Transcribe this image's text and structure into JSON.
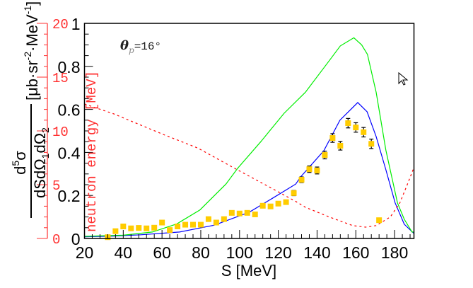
{
  "chart_data": {
    "type": "scatter",
    "xlabel": "S [MeV]",
    "ylabel": {
      "numerator": "d",
      "numerator_sup": "5",
      "numerator_sym": "σ",
      "denominator": "dSdΩ",
      "sub1": "1",
      "mid": "dΩ",
      "sub2": "2",
      "units": "[μb·sr",
      "units_sup1": "-2",
      "units_mid": "·MeV",
      "units_sup2": "-1",
      "units_end": "]"
    },
    "ylabel_right": "neutron energy [MeV]",
    "annotation": {
      "symbol": "θ",
      "sub": "p",
      "text": "=16°"
    },
    "xlim": [
      20,
      190
    ],
    "ylim": [
      0,
      1
    ],
    "ylim_right": [
      0,
      20
    ],
    "xticks": [
      "20",
      "40",
      "60",
      "80",
      "100",
      "120",
      "140",
      "160",
      "180"
    ],
    "yticks": [
      "0",
      "0.2",
      "0.4",
      "0.6",
      "0.8",
      "1"
    ],
    "yticks_right": [
      "0",
      "5",
      "10",
      "15",
      "20"
    ],
    "grid": false,
    "colors": {
      "data": "#ffcc00",
      "blue_curve": "#0000ff",
      "green_curve": "#00ee00",
      "red_curve": "#ff0000",
      "right_axis": "#ff3030"
    },
    "points": {
      "x": [
        32,
        36,
        40,
        44,
        48,
        52,
        56,
        60,
        64,
        68,
        72,
        76,
        80,
        84,
        88,
        92,
        96,
        100,
        104,
        108,
        112,
        116,
        120,
        124,
        128,
        132,
        136,
        140,
        144,
        148,
        152,
        156,
        160,
        164,
        168,
        172
      ],
      "y": [
        0.006,
        0.034,
        0.056,
        0.047,
        0.049,
        0.047,
        0.05,
        0.074,
        0.039,
        0.056,
        0.064,
        0.064,
        0.064,
        0.09,
        0.074,
        0.09,
        0.119,
        0.116,
        0.119,
        0.112,
        0.152,
        0.149,
        0.162,
        0.169,
        0.211,
        0.273,
        0.322,
        0.316,
        0.388,
        0.467,
        0.431,
        0.536,
        0.516,
        0.494,
        0.44,
        0.085
      ],
      "err": [
        0,
        0,
        0,
        0,
        0,
        0,
        0,
        0,
        0,
        0,
        0,
        0,
        0,
        0,
        0,
        0,
        0,
        0,
        0,
        0,
        0,
        0,
        0,
        0,
        0.012,
        0.013,
        0.015,
        0.016,
        0.018,
        0.02,
        0.02,
        0.022,
        0.022,
        0.022,
        0.022,
        0
      ]
    },
    "series": [
      {
        "style": "solid",
        "color": "#0000ff",
        "x": [
          20,
          35,
          49,
          69,
          87,
          105,
          117,
          129,
          131.5,
          143.5,
          151.8,
          161,
          165.8,
          170.5,
          175.5,
          180.3,
          185,
          190
        ],
        "y": [
          0.008,
          0.011,
          0.017,
          0.03,
          0.062,
          0.122,
          0.187,
          0.253,
          0.286,
          0.408,
          0.55,
          0.632,
          0.589,
          0.474,
          0.319,
          0.165,
          0.066,
          0.023
        ]
      },
      {
        "style": "solid",
        "color": "#00ee00",
        "x": [
          20,
          40,
          55,
          67.5,
          79.6,
          93,
          99,
          111,
          123,
          134,
          146,
          152,
          159,
          163,
          166,
          170.5,
          175.5,
          181.5,
          185,
          189,
          190
        ],
        "y": [
          0.01,
          0.015,
          0.03,
          0.067,
          0.133,
          0.253,
          0.326,
          0.45,
          0.582,
          0.68,
          0.823,
          0.895,
          0.933,
          0.9,
          0.856,
          0.68,
          0.41,
          0.165,
          0.089,
          0.03,
          0.03
        ]
      },
      {
        "style": "dashed",
        "color": "#ff0000",
        "axis": "right",
        "x": [
          20,
          34.9,
          60.3,
          78.5,
          96.7,
          117.3,
          129.4,
          134,
          146.3,
          158.4,
          165,
          170.5,
          177.8,
          182.7,
          186.3,
          190
        ],
        "y": [
          12.5,
          11.6,
          9.7,
          8.4,
          6.6,
          4.6,
          3.4,
          2.9,
          2.0,
          1.2,
          1.05,
          1.2,
          2.0,
          3.3,
          4.9,
          6.6
        ]
      }
    ]
  }
}
